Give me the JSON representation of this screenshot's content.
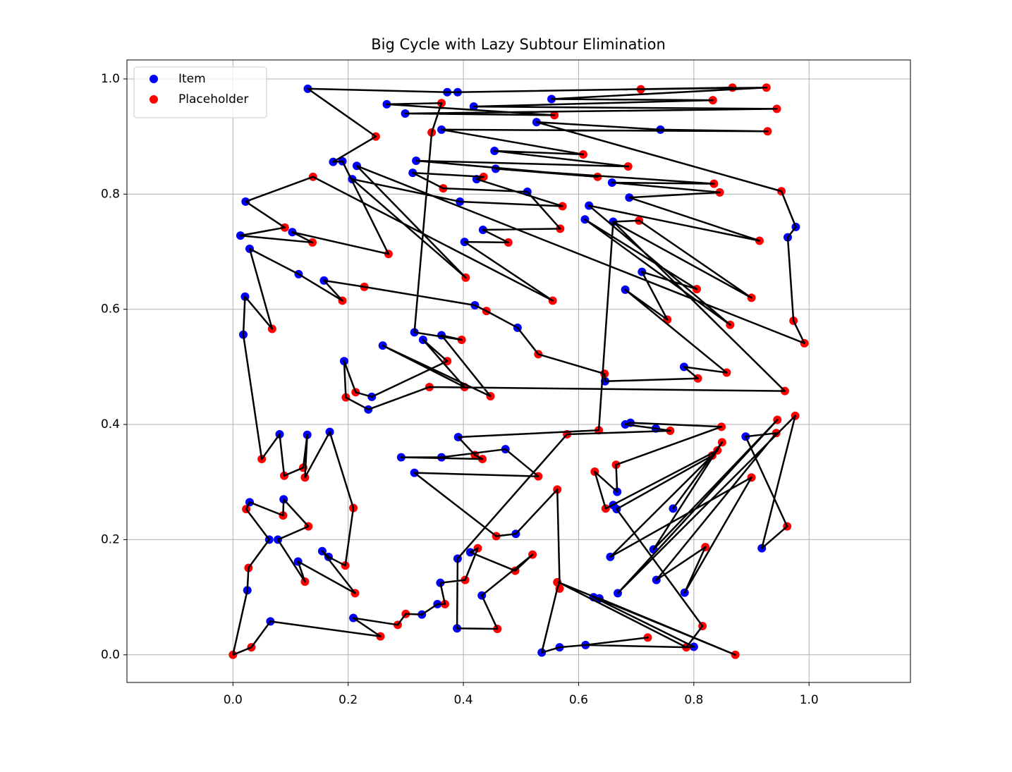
{
  "chart_data": {
    "type": "scatter",
    "title": "Big Cycle with Lazy Subtour Elimination",
    "xlim": [
      -0.184,
      1.176
    ],
    "ylim": [
      -0.048,
      1.033
    ],
    "xticks": [
      {
        "value": 0,
        "label": "0.0"
      },
      0.2,
      0.4,
      0.6,
      0.8,
      {
        "value": 1,
        "label": "1.0"
      }
    ],
    "yticks": [
      {
        "value": 0,
        "label": "0.0"
      },
      0.2,
      0.4,
      0.6,
      0.8,
      {
        "value": 1,
        "label": "1.0"
      }
    ],
    "grid": true,
    "legend": "upper left",
    "series": [
      {
        "name": "Item",
        "color": "#0000ff",
        "x": [
          0.13,
          0.372,
          0.39,
          0.553,
          0.267,
          0.418,
          0.299,
          0.527,
          0.362,
          0.742,
          0.454,
          0.174,
          0.19,
          0.318,
          0.215,
          0.456,
          0.312,
          0.423,
          0.207,
          0.658,
          0.511,
          0.688,
          0.022,
          0.394,
          0.618,
          0.611,
          0.66,
          0.977,
          0.434,
          0.103,
          0.013,
          0.963,
          0.402,
          0.029,
          0.114,
          0.71,
          0.158,
          0.681,
          0.021,
          0.42,
          0.494,
          0.315,
          0.362,
          0.018,
          0.33,
          0.26,
          0.193,
          0.783,
          0.646,
          0.241,
          0.235,
          0.681,
          0.69,
          0.734,
          0.081,
          0.129,
          0.168,
          0.391,
          0.89,
          0.473,
          0.292,
          0.362,
          0.315,
          0.667,
          0.088,
          0.029,
          0.66,
          0.666,
          0.764,
          0.491,
          0.063,
          0.078,
          0.73,
          0.918,
          0.155,
          0.166,
          0.412,
          0.655,
          0.39,
          0.113,
          0.36,
          0.735,
          0.025,
          0.784,
          0.668,
          0.432,
          0.626,
          0.636,
          0.355,
          0.328,
          0.209,
          0.065,
          0.389,
          0.612,
          0.567,
          0.8,
          0.536
        ],
        "y": [
          0.983,
          0.977,
          0.977,
          0.965,
          0.956,
          0.952,
          0.94,
          0.925,
          0.912,
          0.912,
          0.875,
          0.856,
          0.857,
          0.858,
          0.849,
          0.844,
          0.837,
          0.826,
          0.826,
          0.82,
          0.804,
          0.794,
          0.787,
          0.787,
          0.78,
          0.756,
          0.752,
          0.743,
          0.738,
          0.734,
          0.728,
          0.725,
          0.717,
          0.705,
          0.661,
          0.665,
          0.65,
          0.634,
          0.622,
          0.607,
          0.568,
          0.56,
          0.555,
          0.556,
          0.547,
          0.537,
          0.51,
          0.5,
          0.475,
          0.448,
          0.426,
          0.4,
          0.403,
          0.393,
          0.383,
          0.382,
          0.387,
          0.378,
          0.379,
          0.357,
          0.343,
          0.343,
          0.316,
          0.283,
          0.27,
          0.265,
          0.26,
          0.253,
          0.254,
          0.21,
          0.2,
          0.2,
          0.183,
          0.185,
          0.18,
          0.17,
          0.178,
          0.17,
          0.167,
          0.162,
          0.125,
          0.13,
          0.112,
          0.108,
          0.107,
          0.103,
          0.1,
          0.098,
          0.088,
          0.07,
          0.064,
          0.058,
          0.046,
          0.017,
          0.013,
          0.014,
          0.004
        ]
      },
      {
        "name": "Placeholder",
        "color": "#ff0000",
        "x": [
          0.708,
          0.867,
          0.926,
          0.362,
          0.833,
          0.944,
          0.558,
          0.345,
          0.928,
          0.248,
          0.608,
          0.686,
          0.139,
          0.633,
          0.435,
          0.835,
          0.365,
          0.845,
          0.952,
          0.572,
          0.09,
          0.705,
          0.568,
          0.138,
          0.478,
          0.914,
          0.27,
          0.404,
          0.228,
          0.805,
          0.9,
          0.19,
          0.555,
          0.44,
          0.754,
          0.973,
          0.863,
          0.068,
          0.397,
          0.992,
          0.53,
          0.372,
          0.645,
          0.857,
          0.807,
          0.341,
          0.402,
          0.958,
          0.213,
          0.196,
          0.447,
          0.976,
          0.945,
          0.848,
          0.635,
          0.759,
          0.58,
          0.943,
          0.849,
          0.841,
          0.832,
          0.42,
          0.433,
          0.05,
          0.665,
          0.122,
          0.628,
          0.089,
          0.125,
          0.53,
          0.563,
          0.9,
          0.209,
          0.647,
          0.023,
          0.087,
          0.131,
          0.962,
          0.457,
          0.82,
          0.425,
          0.52,
          0.195,
          0.027,
          0.49,
          0.403,
          0.125,
          0.563,
          0.212,
          0.567,
          0.368,
          0.3,
          0.815,
          0.286,
          0.459,
          0.256,
          0.72,
          0.787,
          0.032,
          0.872,
          0.0
        ],
        "y": [
          0.982,
          0.985,
          0.985,
          0.958,
          0.963,
          0.948,
          0.937,
          0.907,
          0.909,
          0.9,
          0.869,
          0.848,
          0.83,
          0.83,
          0.83,
          0.818,
          0.81,
          0.803,
          0.805,
          0.779,
          0.742,
          0.754,
          0.74,
          0.716,
          0.716,
          0.719,
          0.696,
          0.655,
          0.639,
          0.635,
          0.62,
          0.615,
          0.615,
          0.597,
          0.582,
          0.58,
          0.573,
          0.566,
          0.547,
          0.541,
          0.522,
          0.51,
          0.488,
          0.49,
          0.48,
          0.465,
          0.465,
          0.458,
          0.456,
          0.447,
          0.449,
          0.415,
          0.408,
          0.396,
          0.39,
          0.389,
          0.383,
          0.385,
          0.369,
          0.355,
          0.346,
          0.347,
          0.34,
          0.34,
          0.33,
          0.325,
          0.318,
          0.311,
          0.308,
          0.31,
          0.287,
          0.308,
          0.255,
          0.254,
          0.253,
          0.242,
          0.223,
          0.223,
          0.206,
          0.187,
          0.185,
          0.174,
          0.155,
          0.151,
          0.146,
          0.13,
          0.127,
          0.126,
          0.107,
          0.115,
          0.088,
          0.071,
          0.05,
          0.052,
          0.045,
          0.032,
          0.03,
          0.013,
          0.013,
          0.0,
          0.0
        ]
      },
      {
        "type": "line",
        "color": "#000000",
        "x": [
          0.0,
          0.025,
          0.027,
          0.063,
          0.023,
          0.029,
          0.087,
          0.088,
          0.131,
          0.078,
          0.125,
          0.113,
          0.212,
          0.155,
          0.166,
          0.195,
          0.209,
          0.168,
          0.125,
          0.129,
          0.122,
          0.089,
          0.081,
          0.05,
          0.018,
          0.021,
          0.068,
          0.029,
          0.114,
          0.19,
          0.158,
          0.228,
          0.42,
          0.44,
          0.494,
          0.53,
          0.645,
          0.646,
          0.807,
          0.783,
          0.857,
          0.681,
          0.754,
          0.71,
          0.805,
          0.611,
          0.863,
          0.618,
          0.914,
          0.688,
          0.845,
          0.658,
          0.835,
          0.456,
          0.633,
          0.318,
          0.686,
          0.454,
          0.608,
          0.362,
          0.928,
          0.742,
          0.527,
          0.952,
          0.977,
          0.963,
          0.973,
          0.992,
          0.215,
          0.404,
          0.207,
          0.394,
          0.572,
          0.423,
          0.435,
          0.312,
          0.365,
          0.511,
          0.568,
          0.434,
          0.478,
          0.402,
          0.555,
          0.139,
          0.022,
          0.09,
          0.013,
          0.138,
          0.103,
          0.27,
          0.19,
          0.174,
          0.248,
          0.13,
          0.372,
          0.39,
          0.867,
          0.708,
          0.926,
          0.553,
          0.833,
          0.418,
          0.944,
          0.299,
          0.558,
          0.267,
          0.362,
          0.345,
          0.315,
          0.397,
          0.362,
          0.447,
          0.26,
          0.402,
          0.33,
          0.372,
          0.241,
          0.213,
          0.193,
          0.196,
          0.235,
          0.341,
          0.958,
          0.66,
          0.705,
          0.9,
          0.66,
          0.635,
          0.391,
          0.42,
          0.433,
          0.292,
          0.362,
          0.473,
          0.53,
          0.315,
          0.457,
          0.491,
          0.563,
          0.567,
          0.563,
          0.536,
          0.567,
          0.612,
          0.72,
          0.612,
          0.787,
          0.8,
          0.626,
          0.636,
          0.872,
          0.565,
          0.787,
          0.815,
          0.666,
          0.832,
          0.764,
          0.849,
          0.73,
          0.945,
          0.668,
          0.976,
          0.918,
          0.962,
          0.89,
          0.943,
          0.735,
          0.82,
          0.784,
          0.9,
          0.655,
          0.841,
          0.647,
          0.628,
          0.667,
          0.665,
          0.848,
          0.69,
          0.681,
          0.734,
          0.759,
          0.58,
          0.39,
          0.389,
          0.459,
          0.432,
          0.52,
          0.49,
          0.412,
          0.425,
          0.403,
          0.36,
          0.368,
          0.355,
          0.328,
          0.3,
          0.286,
          0.209,
          0.256,
          0.065,
          0.032,
          0.0
        ],
        "y": [
          0.0,
          0.112,
          0.151,
          0.2,
          0.253,
          0.265,
          0.242,
          0.27,
          0.223,
          0.2,
          0.127,
          0.162,
          0.107,
          0.18,
          0.17,
          0.155,
          0.255,
          0.387,
          0.308,
          0.382,
          0.325,
          0.311,
          0.383,
          0.34,
          0.556,
          0.622,
          0.566,
          0.705,
          0.661,
          0.615,
          0.65,
          0.639,
          0.607,
          0.597,
          0.568,
          0.522,
          0.488,
          0.475,
          0.48,
          0.5,
          0.49,
          0.634,
          0.582,
          0.665,
          0.635,
          0.756,
          0.573,
          0.78,
          0.719,
          0.794,
          0.803,
          0.82,
          0.818,
          0.844,
          0.83,
          0.858,
          0.848,
          0.875,
          0.869,
          0.912,
          0.909,
          0.912,
          0.925,
          0.805,
          0.743,
          0.725,
          0.58,
          0.541,
          0.849,
          0.655,
          0.826,
          0.787,
          0.779,
          0.826,
          0.83,
          0.837,
          0.81,
          0.804,
          0.74,
          0.738,
          0.716,
          0.717,
          0.615,
          0.83,
          0.787,
          0.742,
          0.728,
          0.716,
          0.734,
          0.696,
          0.857,
          0.856,
          0.9,
          0.983,
          0.977,
          0.977,
          0.985,
          0.982,
          0.985,
          0.965,
          0.963,
          0.952,
          0.948,
          0.94,
          0.937,
          0.956,
          0.958,
          0.907,
          0.56,
          0.547,
          0.555,
          0.449,
          0.537,
          0.465,
          0.547,
          0.51,
          0.448,
          0.456,
          0.51,
          0.447,
          0.426,
          0.465,
          0.458,
          0.752,
          0.754,
          0.62,
          0.752,
          0.39,
          0.378,
          0.347,
          0.34,
          0.343,
          0.343,
          0.357,
          0.31,
          0.316,
          0.206,
          0.21,
          0.287,
          0.126,
          0.115,
          0.004,
          0.013,
          0.017,
          0.03,
          0.017,
          0.013,
          0.014,
          0.1,
          0.098,
          0.0,
          0.126,
          0.013,
          0.05,
          0.253,
          0.346,
          0.254,
          0.369,
          0.183,
          0.408,
          0.107,
          0.415,
          0.185,
          0.223,
          0.379,
          0.385,
          0.13,
          0.187,
          0.108,
          0.308,
          0.17,
          0.355,
          0.254,
          0.318,
          0.283,
          0.33,
          0.396,
          0.403,
          0.4,
          0.393,
          0.389,
          0.383,
          0.167,
          0.046,
          0.045,
          0.103,
          0.174,
          0.146,
          0.178,
          0.185,
          0.13,
          0.125,
          0.088,
          0.088,
          0.07,
          0.071,
          0.052,
          0.064,
          0.032,
          0.058,
          0.013,
          0.0
        ]
      }
    ]
  }
}
